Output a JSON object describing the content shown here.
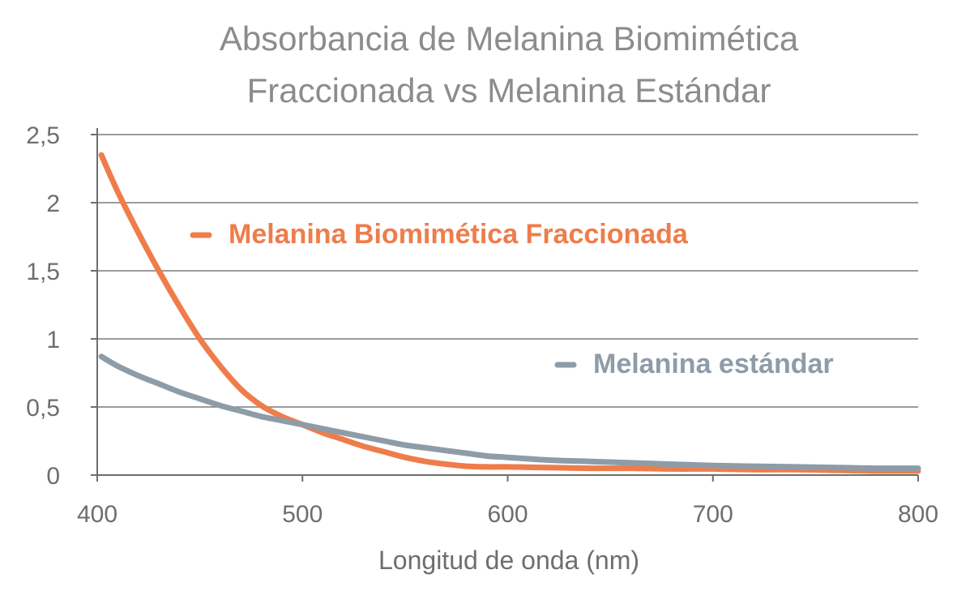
{
  "chart_data": {
    "type": "line",
    "title_lines": [
      "Absorbancia de Melanina Biomimética",
      "Fraccionada vs Melanina Estándar"
    ],
    "xlabel": "Longitud de onda (nm)",
    "ylabel": "",
    "xlim": [
      400,
      800
    ],
    "ylim": [
      0,
      2.5
    ],
    "x_ticks": [
      400,
      500,
      600,
      700,
      800
    ],
    "x_tick_labels": [
      "400",
      "500",
      "600",
      "700",
      "800"
    ],
    "y_ticks": [
      0,
      0.5,
      1,
      1.5,
      2,
      2.5
    ],
    "y_tick_labels": [
      "0",
      "0,5",
      "1",
      "1,5",
      "2",
      "2,5"
    ],
    "grid": "horizontal",
    "x": [
      402,
      410,
      420,
      430,
      440,
      450,
      460,
      470,
      480,
      490,
      500,
      510,
      520,
      530,
      540,
      550,
      560,
      570,
      580,
      590,
      600,
      620,
      640,
      660,
      680,
      700,
      720,
      740,
      760,
      780,
      800
    ],
    "series": [
      {
        "name": "Melanina Biomimética Fraccionada",
        "color": "#ee7d4b",
        "values": [
          2.35,
          2.08,
          1.78,
          1.5,
          1.24,
          1.0,
          0.8,
          0.63,
          0.51,
          0.43,
          0.37,
          0.31,
          0.26,
          0.21,
          0.17,
          0.13,
          0.1,
          0.08,
          0.065,
          0.06,
          0.06,
          0.055,
          0.05,
          0.05,
          0.045,
          0.045,
          0.04,
          0.04,
          0.035,
          0.03,
          0.03
        ]
      },
      {
        "name": "Melanina estándar",
        "color": "#8e9ca8",
        "values": [
          0.87,
          0.8,
          0.73,
          0.67,
          0.61,
          0.56,
          0.51,
          0.47,
          0.43,
          0.4,
          0.37,
          0.34,
          0.31,
          0.28,
          0.25,
          0.22,
          0.2,
          0.18,
          0.16,
          0.14,
          0.13,
          0.11,
          0.1,
          0.09,
          0.08,
          0.07,
          0.065,
          0.06,
          0.055,
          0.05,
          0.05
        ]
      }
    ],
    "legend": [
      {
        "label": "Melanina Biomimética Fraccionada",
        "color": "#ee7d4b",
        "placement": "upper-middle"
      },
      {
        "label": "Melanina estándar",
        "color": "#8e9ca8",
        "placement": "middle-right"
      }
    ]
  }
}
